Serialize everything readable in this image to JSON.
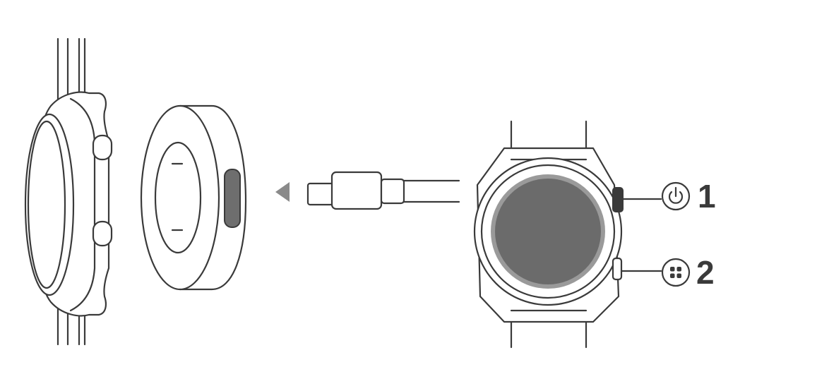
{
  "callouts": [
    {
      "number": "1",
      "icon": "power-icon"
    },
    {
      "number": "2",
      "icon": "apps-grid-icon"
    }
  ],
  "colors": {
    "line": "#3a3a3a",
    "screen": "#6b6b6b",
    "charging_port": "#6e6e6e",
    "arrow": "#8a8a8a",
    "background": "#ffffff"
  }
}
